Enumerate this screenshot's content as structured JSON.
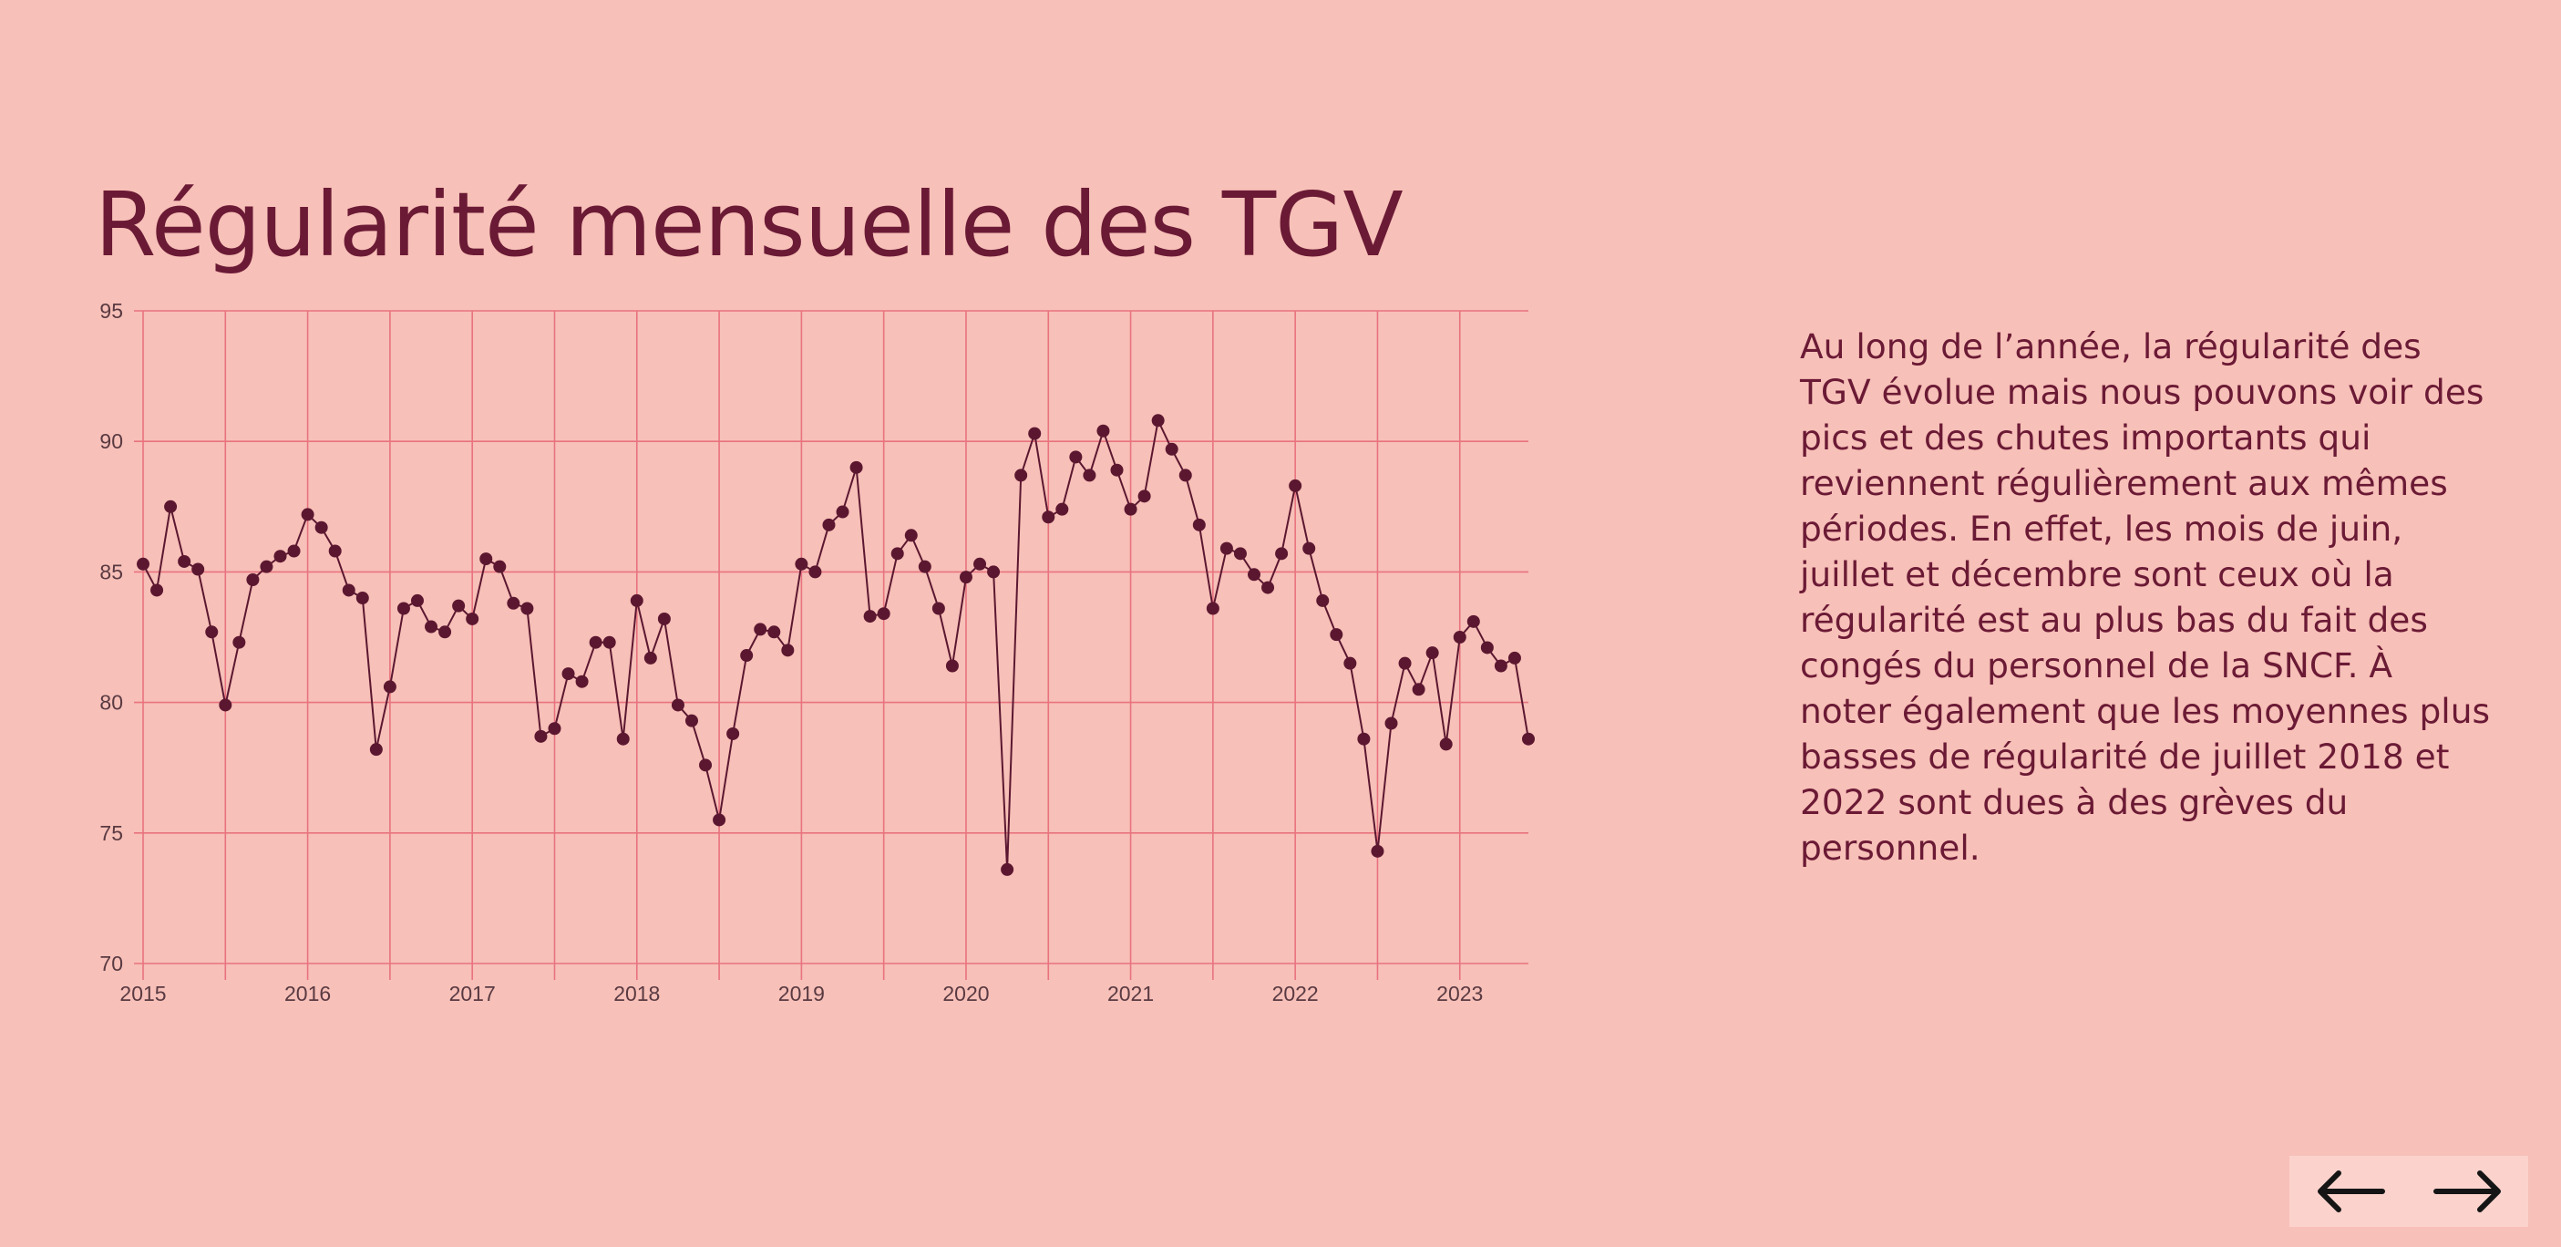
{
  "title": "Régularité mensuelle des TGV",
  "description": "Au long de l’année, la régularité des TGV évolue mais nous pouvons voir des pics et des chutes importants qui reviennent régulièrement aux mêmes périodes. En effet, les mois de juin, juillet et décembre sont ceux où la régularité est au plus bas du fait des congés du personnel de la SNCF. À noter également que les moyennes plus basses de régularité de juillet 2018 et 2022 sont dues à des grèves du personnel.",
  "nav": {
    "prev_icon": "arrow-left-icon",
    "next_icon": "arrow-right-icon"
  },
  "colors": {
    "background": "#f7c0b8",
    "text": "#6b1a35",
    "grid": "#e8737f",
    "line": "#5c1730",
    "point": "#5c1730"
  },
  "chart_data": {
    "type": "line",
    "title": "Régularité mensuelle des TGV",
    "xlabel": "",
    "ylabel": "",
    "grid": true,
    "ylim": [
      70,
      95
    ],
    "yticks": [
      "70",
      "75",
      "80",
      "85",
      "90",
      "95"
    ],
    "xlim": [
      "2015-01",
      "2023-06"
    ],
    "xticks": [
      "2015",
      "2016",
      "2017",
      "2018",
      "2019",
      "2020",
      "2021",
      "2022",
      "2023"
    ],
    "series": [
      {
        "name": "",
        "x": [
          "2015-01",
          "2015-02",
          "2015-03",
          "2015-04",
          "2015-05",
          "2015-06",
          "2015-07",
          "2015-08",
          "2015-09",
          "2015-10",
          "2015-11",
          "2015-12",
          "2016-01",
          "2016-02",
          "2016-03",
          "2016-04",
          "2016-05",
          "2016-06",
          "2016-07",
          "2016-08",
          "2016-09",
          "2016-10",
          "2016-11",
          "2016-12",
          "2017-01",
          "2017-02",
          "2017-03",
          "2017-04",
          "2017-05",
          "2017-06",
          "2017-07",
          "2017-08",
          "2017-09",
          "2017-10",
          "2017-11",
          "2017-12",
          "2018-01",
          "2018-02",
          "2018-03",
          "2018-04",
          "2018-05",
          "2018-06",
          "2018-07",
          "2018-08",
          "2018-09",
          "2018-10",
          "2018-11",
          "2018-12",
          "2019-01",
          "2019-02",
          "2019-03",
          "2019-04",
          "2019-05",
          "2019-06",
          "2019-07",
          "2019-08",
          "2019-09",
          "2019-10",
          "2019-11",
          "2019-12",
          "2020-01",
          "2020-02",
          "2020-03",
          "2020-04",
          "2020-05",
          "2020-06",
          "2020-07",
          "2020-08",
          "2020-09",
          "2020-10",
          "2020-11",
          "2020-12",
          "2021-01",
          "2021-02",
          "2021-03",
          "2021-04",
          "2021-05",
          "2021-06",
          "2021-07",
          "2021-08",
          "2021-09",
          "2021-10",
          "2021-11",
          "2021-12",
          "2022-01",
          "2022-02",
          "2022-03",
          "2022-04",
          "2022-05",
          "2022-06",
          "2022-07",
          "2022-08",
          "2022-09",
          "2022-10",
          "2022-11",
          "2022-12",
          "2023-01",
          "2023-02",
          "2023-03",
          "2023-04",
          "2023-05",
          "2023-06"
        ],
        "values": [
          85.3,
          84.3,
          87.5,
          85.4,
          85.1,
          82.7,
          79.9,
          82.3,
          84.7,
          85.2,
          85.6,
          85.8,
          87.2,
          86.7,
          85.8,
          84.3,
          84.0,
          78.2,
          80.6,
          83.6,
          83.9,
          82.9,
          82.7,
          83.7,
          83.2,
          85.5,
          85.2,
          83.8,
          83.6,
          78.7,
          79.0,
          81.1,
          80.8,
          82.3,
          82.3,
          78.6,
          83.9,
          81.7,
          83.2,
          79.9,
          79.3,
          77.6,
          75.5,
          78.8,
          81.8,
          82.8,
          82.7,
          82.0,
          85.3,
          85.0,
          86.8,
          87.3,
          89.0,
          83.3,
          83.4,
          85.7,
          86.4,
          85.2,
          83.6,
          81.4,
          84.8,
          85.3,
          85.0,
          73.6,
          88.7,
          90.3,
          87.1,
          87.4,
          89.4,
          88.7,
          90.4,
          88.9,
          87.4,
          87.9,
          90.8,
          89.7,
          88.7,
          86.8,
          83.6,
          85.9,
          85.7,
          84.9,
          84.4,
          85.7,
          88.3,
          85.9,
          83.9,
          82.6,
          81.5,
          78.6,
          74.3,
          79.2,
          81.5,
          80.5,
          81.9,
          78.4,
          82.5,
          83.1,
          82.1,
          81.4,
          81.7,
          78.6
        ]
      }
    ]
  }
}
